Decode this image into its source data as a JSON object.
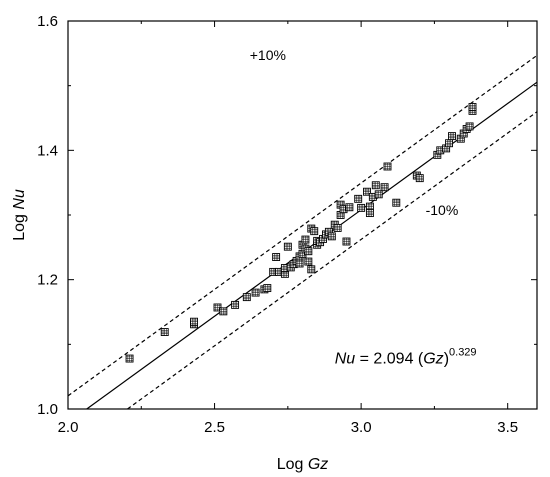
{
  "chart_data": {
    "type": "scatter",
    "xlabel": {
      "prefix": "Log ",
      "var": "Gz"
    },
    "ylabel": {
      "prefix": "Log ",
      "var": "Nu"
    },
    "xlim": [
      2.0,
      3.6
    ],
    "ylim": [
      1.0,
      1.6
    ],
    "x_ticks": [
      2.0,
      2.5,
      3.0,
      3.5
    ],
    "x_tick_labels": [
      "2.0",
      "2.5",
      "3.0",
      "3.5"
    ],
    "y_ticks": [
      1.0,
      1.2,
      1.4,
      1.6
    ],
    "y_tick_labels": [
      "1.0",
      "1.2",
      "1.4",
      "1.6"
    ],
    "grid": false,
    "marker": "square-with-cross",
    "points": [
      [
        2.21,
        1.078
      ],
      [
        2.33,
        1.119
      ],
      [
        2.43,
        1.131
      ],
      [
        2.43,
        1.135
      ],
      [
        2.51,
        1.157
      ],
      [
        2.53,
        1.151
      ],
      [
        2.57,
        1.161
      ],
      [
        2.61,
        1.173
      ],
      [
        2.64,
        1.18
      ],
      [
        2.67,
        1.185
      ],
      [
        2.68,
        1.187
      ],
      [
        2.7,
        1.212
      ],
      [
        2.72,
        1.212
      ],
      [
        2.71,
        1.235
      ],
      [
        2.74,
        1.209
      ],
      [
        2.74,
        1.218
      ],
      [
        2.75,
        1.251
      ],
      [
        2.76,
        1.219
      ],
      [
        2.77,
        1.224
      ],
      [
        2.78,
        1.229
      ],
      [
        2.79,
        1.225
      ],
      [
        2.79,
        1.236
      ],
      [
        2.8,
        1.24
      ],
      [
        2.8,
        1.254
      ],
      [
        2.81,
        1.248
      ],
      [
        2.81,
        1.262
      ],
      [
        2.82,
        1.244
      ],
      [
        2.82,
        1.228
      ],
      [
        2.83,
        1.216
      ],
      [
        2.83,
        1.279
      ],
      [
        2.84,
        1.275
      ],
      [
        2.85,
        1.254
      ],
      [
        2.85,
        1.26
      ],
      [
        2.86,
        1.258
      ],
      [
        2.87,
        1.263
      ],
      [
        2.88,
        1.27
      ],
      [
        2.89,
        1.274
      ],
      [
        2.9,
        1.267
      ],
      [
        2.91,
        1.285
      ],
      [
        2.92,
        1.28
      ],
      [
        2.93,
        1.3
      ],
      [
        2.93,
        1.316
      ],
      [
        2.94,
        1.309
      ],
      [
        2.95,
        1.259
      ],
      [
        2.96,
        1.312
      ],
      [
        2.99,
        1.325
      ],
      [
        3.0,
        1.311
      ],
      [
        3.02,
        1.336
      ],
      [
        3.03,
        1.313
      ],
      [
        3.03,
        1.303
      ],
      [
        3.04,
        1.328
      ],
      [
        3.05,
        1.346
      ],
      [
        3.06,
        1.332
      ],
      [
        3.08,
        1.343
      ],
      [
        3.09,
        1.375
      ],
      [
        3.12,
        1.319
      ],
      [
        3.19,
        1.361
      ],
      [
        3.2,
        1.357
      ],
      [
        3.26,
        1.393
      ],
      [
        3.27,
        1.4
      ],
      [
        3.29,
        1.403
      ],
      [
        3.3,
        1.411
      ],
      [
        3.31,
        1.422
      ],
      [
        3.34,
        1.418
      ],
      [
        3.35,
        1.426
      ],
      [
        3.36,
        1.433
      ],
      [
        3.37,
        1.437
      ],
      [
        3.38,
        1.461
      ],
      [
        3.38,
        1.467
      ]
    ],
    "fit_line": {
      "coefficient": 2.094,
      "exponent": 0.329,
      "style": "solid"
    },
    "bound_lines": [
      {
        "label": "+10%",
        "factor": 1.1,
        "style": "dashed"
      },
      {
        "label": "-10%",
        "factor": 0.9,
        "style": "dashed"
      }
    ],
    "equation": {
      "var": "Nu",
      "mid": " = 2.094 (",
      "var2": "Gz",
      "close": ")",
      "exponent": "0.329"
    }
  }
}
